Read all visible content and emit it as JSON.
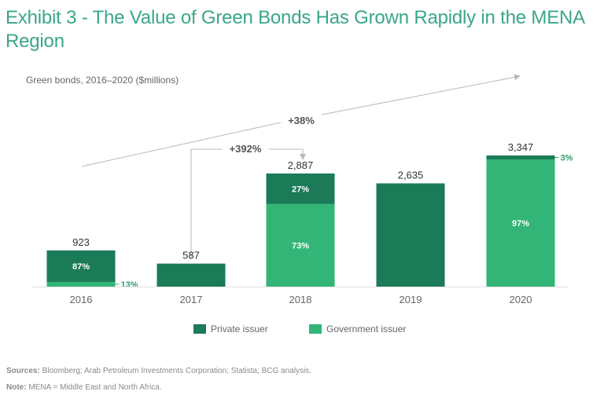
{
  "header": {
    "title": "Exhibit 3 - The Value of Green Bonds Has Grown Rapidly in the MENA Region"
  },
  "colors": {
    "private": "#1b7a57",
    "government": "#32b576",
    "annotation_line": "#b8b8b8",
    "title": "#3aa68a"
  },
  "chart_data": {
    "type": "bar",
    "stacked": true,
    "title": "Exhibit 3 - The Value of Green Bonds Has Grown Rapidly in the MENA Region",
    "subtitle": "Green bonds, 2016–2020 ($millions)",
    "xlabel": "",
    "ylabel": "",
    "ylim": [
      0,
      3347
    ],
    "grid": false,
    "categories": [
      "2016",
      "2017",
      "2018",
      "2019",
      "2020"
    ],
    "totals": [
      923,
      587,
      2887,
      2635,
      3347
    ],
    "total_labels": [
      "923",
      "587",
      "2,887",
      "2,635",
      "3,347"
    ],
    "series": [
      {
        "name": "Government issuer",
        "share_pct": [
          13,
          0,
          73,
          0,
          97
        ],
        "labels": [
          "13%",
          "",
          "73%",
          "",
          "97%"
        ],
        "label_position": [
          "outside",
          "",
          "inside",
          "",
          "inside"
        ]
      },
      {
        "name": "Private issuer",
        "share_pct": [
          87,
          100,
          27,
          100,
          3
        ],
        "labels": [
          "87%",
          "",
          "27%",
          "",
          "3%"
        ],
        "label_position": [
          "inside",
          "",
          "inside",
          "",
          "outside"
        ]
      }
    ],
    "annotations": [
      {
        "label": "+392%",
        "from": "2017",
        "to": "2018",
        "type": "bracket-arrow"
      },
      {
        "label": "+38%",
        "from": "2016",
        "to": "2020",
        "type": "trend-arrow"
      }
    ],
    "legend": {
      "position": "bottom",
      "entries": [
        "Private issuer",
        "Government issuer"
      ]
    }
  },
  "legend": {
    "private_label": "Private issuer",
    "government_label": "Government issuer"
  },
  "footer": {
    "sources_label": "Sources:",
    "sources_text": " Bloomberg; Arab Petroleum Investments Corporation; Statista; BCG analysis.",
    "note_label": "Note:",
    "note_text": " MENA = Middle East and North Africa."
  }
}
